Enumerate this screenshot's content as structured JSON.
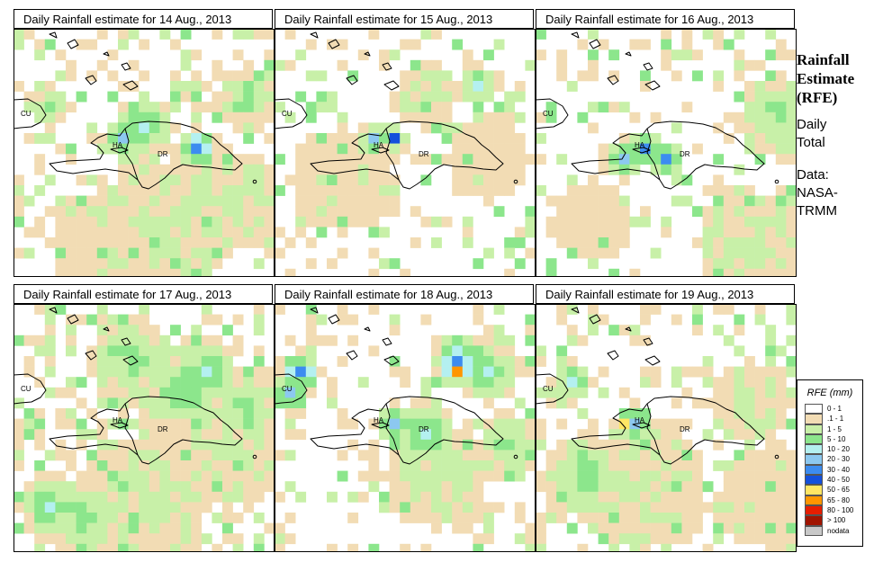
{
  "side": {
    "title_lines": [
      "Rainfall",
      "Estimate",
      "(RFE)"
    ],
    "daily_lines": [
      "Daily",
      "Total"
    ],
    "data_lines": [
      "Data:",
      "NASA-",
      "TRMM"
    ]
  },
  "map_labels": {
    "cuba": "CU",
    "haiti": "HA",
    "dominican_republic": "DR"
  },
  "panels": [
    {
      "title": "Daily Rainfall estimate for  14 Aug., 2013",
      "date": "14 Aug., 2013"
    },
    {
      "title": "Daily Rainfall estimate for  15 Aug., 2013",
      "date": "15 Aug., 2013"
    },
    {
      "title": "Daily Rainfall estimate for  16 Aug., 2013",
      "date": "16 Aug., 2013"
    },
    {
      "title": "Daily Rainfall estimate for  17 Aug., 2013",
      "date": "17 Aug., 2013"
    },
    {
      "title": "Daily Rainfall estimate for  18 Aug., 2013",
      "date": "18 Aug., 2013"
    },
    {
      "title": "Daily Rainfall estimate for  19 Aug., 2013",
      "date": "19 Aug., 2013"
    }
  ],
  "legend": {
    "title": "RFE (mm)",
    "classes": [
      {
        "label": "0 - 1",
        "color": "#ffffff"
      },
      {
        "label": ".1 - 1",
        "color": "#f2dcb4"
      },
      {
        "label": "1 - 5",
        "color": "#c8f0a8"
      },
      {
        "label": "5 - 10",
        "color": "#8ce68c"
      },
      {
        "label": "10 - 20",
        "color": "#b4f0f0"
      },
      {
        "label": "20 - 30",
        "color": "#8cc8f0"
      },
      {
        "label": "30 - 40",
        "color": "#3c8cf0"
      },
      {
        "label": "40 - 50",
        "color": "#1450dc"
      },
      {
        "label": "50 - 65",
        "color": "#ffe664"
      },
      {
        "label": "65 - 80",
        "color": "#ff9600"
      },
      {
        "label": "80 - 100",
        "color": "#e61e00"
      },
      {
        "label": "> 100",
        "color": "#a01400"
      },
      {
        "label": "nodata",
        "color": "#c8c8c8"
      }
    ]
  }
}
